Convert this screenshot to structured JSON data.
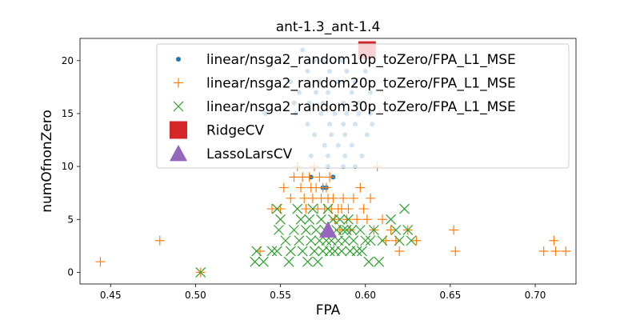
{
  "chart_data": {
    "type": "scatter",
    "title": "ant-1.3_ant-1.4",
    "xlabel": "FPA",
    "ylabel": "numOfnonZero",
    "xlim": [
      0.432,
      0.724
    ],
    "ylim": [
      -1.1,
      22.1
    ],
    "xticks": [
      0.45,
      0.5,
      0.55,
      0.6,
      0.65,
      0.7
    ],
    "xtick_labels": [
      "0.45",
      "0.50",
      "0.55",
      "0.60",
      "0.65",
      "0.70"
    ],
    "yticks": [
      0,
      5,
      10,
      15,
      20
    ],
    "ytick_labels": [
      "0",
      "5",
      "10",
      "15",
      "20"
    ],
    "grid": false,
    "legend_position": "upper-right",
    "series": [
      {
        "name": "linear/nsga2_random10p_toZero/FPA_L1_MSE",
        "marker": "dot",
        "color": "#1f77b4",
        "points": [
          [
            0.563,
            21
          ],
          [
            0.57,
            20
          ],
          [
            0.575,
            20
          ],
          [
            0.586,
            20
          ],
          [
            0.598,
            21
          ],
          [
            0.566,
            19
          ],
          [
            0.579,
            19
          ],
          [
            0.589,
            19
          ],
          [
            0.6,
            19
          ],
          [
            0.556,
            18
          ],
          [
            0.573,
            18
          ],
          [
            0.584,
            18
          ],
          [
            0.594,
            18
          ],
          [
            0.561,
            17
          ],
          [
            0.571,
            17
          ],
          [
            0.578,
            17
          ],
          [
            0.592,
            17
          ],
          [
            0.603,
            17
          ],
          [
            0.558,
            16
          ],
          [
            0.567,
            16
          ],
          [
            0.575,
            16
          ],
          [
            0.587,
            16
          ],
          [
            0.596,
            16
          ],
          [
            0.541,
            15
          ],
          [
            0.559,
            15
          ],
          [
            0.574,
            15
          ],
          [
            0.582,
            15
          ],
          [
            0.589,
            15
          ],
          [
            0.596,
            15
          ],
          [
            0.603,
            15
          ],
          [
            0.566,
            14
          ],
          [
            0.579,
            14
          ],
          [
            0.587,
            14
          ],
          [
            0.594,
            14
          ],
          [
            0.604,
            14
          ],
          [
            0.57,
            13
          ],
          [
            0.58,
            13
          ],
          [
            0.588,
            13
          ],
          [
            0.601,
            13
          ],
          [
            0.576,
            12
          ],
          [
            0.584,
            12
          ],
          [
            0.592,
            12
          ],
          [
            0.568,
            11
          ],
          [
            0.578,
            11
          ],
          [
            0.588,
            11
          ],
          [
            0.598,
            11
          ],
          [
            0.578,
            10
          ],
          [
            0.587,
            10
          ],
          [
            0.594,
            10
          ],
          [
            0.568,
            9
          ],
          [
            0.581,
            9
          ],
          [
            0.575,
            8
          ],
          [
            0.577,
            8
          ]
        ]
      },
      {
        "name": "linear/nsga2_random20p_toZero/FPA_L1_MSE",
        "marker": "plus",
        "color": "#ff7f0e",
        "points": [
          [
            0.444,
            1
          ],
          [
            0.479,
            3
          ],
          [
            0.503,
            0
          ],
          [
            0.538,
            2
          ],
          [
            0.545,
            6
          ],
          [
            0.55,
            6
          ],
          [
            0.552,
            8
          ],
          [
            0.556,
            7
          ],
          [
            0.558,
            9
          ],
          [
            0.56,
            10
          ],
          [
            0.562,
            8
          ],
          [
            0.563,
            9
          ],
          [
            0.564,
            7
          ],
          [
            0.565,
            6
          ],
          [
            0.567,
            9
          ],
          [
            0.568,
            8
          ],
          [
            0.569,
            7
          ],
          [
            0.57,
            10
          ],
          [
            0.571,
            8
          ],
          [
            0.572,
            6
          ],
          [
            0.573,
            9
          ],
          [
            0.574,
            7
          ],
          [
            0.575,
            8
          ],
          [
            0.576,
            6
          ],
          [
            0.577,
            8
          ],
          [
            0.578,
            7
          ],
          [
            0.579,
            9
          ],
          [
            0.58,
            6
          ],
          [
            0.581,
            7
          ],
          [
            0.582,
            5
          ],
          [
            0.584,
            6
          ],
          [
            0.585,
            4
          ],
          [
            0.586,
            6
          ],
          [
            0.587,
            7
          ],
          [
            0.589,
            5
          ],
          [
            0.59,
            6
          ],
          [
            0.591,
            4
          ],
          [
            0.593,
            7
          ],
          [
            0.595,
            5
          ],
          [
            0.597,
            8
          ],
          [
            0.599,
            6
          ],
          [
            0.601,
            5
          ],
          [
            0.603,
            7
          ],
          [
            0.605,
            4
          ],
          [
            0.607,
            10
          ],
          [
            0.61,
            5
          ],
          [
            0.612,
            3
          ],
          [
            0.615,
            4
          ],
          [
            0.618,
            3
          ],
          [
            0.62,
            2
          ],
          [
            0.625,
            4
          ],
          [
            0.63,
            3
          ],
          [
            0.652,
            4
          ],
          [
            0.653,
            2
          ],
          [
            0.705,
            2
          ],
          [
            0.711,
            3
          ],
          [
            0.712,
            2
          ],
          [
            0.718,
            2
          ]
        ]
      },
      {
        "name": "linear/nsga2_random30p_toZero/FPA_L1_MSE",
        "marker": "x",
        "color": "#2ca02c",
        "points": [
          [
            0.503,
            0
          ],
          [
            0.535,
            1
          ],
          [
            0.536,
            2
          ],
          [
            0.54,
            1
          ],
          [
            0.545,
            2
          ],
          [
            0.548,
            2
          ],
          [
            0.548,
            6
          ],
          [
            0.549,
            4
          ],
          [
            0.55,
            5
          ],
          [
            0.553,
            3
          ],
          [
            0.555,
            1
          ],
          [
            0.556,
            2
          ],
          [
            0.558,
            4
          ],
          [
            0.56,
            6
          ],
          [
            0.561,
            3
          ],
          [
            0.562,
            5
          ],
          [
            0.563,
            2
          ],
          [
            0.565,
            4
          ],
          [
            0.566,
            1
          ],
          [
            0.567,
            5
          ],
          [
            0.568,
            3
          ],
          [
            0.569,
            6
          ],
          [
            0.57,
            2
          ],
          [
            0.571,
            4
          ],
          [
            0.572,
            1
          ],
          [
            0.573,
            3
          ],
          [
            0.574,
            5
          ],
          [
            0.575,
            2
          ],
          [
            0.576,
            4
          ],
          [
            0.577,
            3
          ],
          [
            0.578,
            6
          ],
          [
            0.579,
            2
          ],
          [
            0.58,
            3
          ],
          [
            0.581,
            5
          ],
          [
            0.582,
            2
          ],
          [
            0.583,
            4
          ],
          [
            0.584,
            3
          ],
          [
            0.585,
            5
          ],
          [
            0.586,
            2
          ],
          [
            0.587,
            4
          ],
          [
            0.588,
            3
          ],
          [
            0.589,
            4
          ],
          [
            0.59,
            5
          ],
          [
            0.591,
            2
          ],
          [
            0.592,
            4
          ],
          [
            0.593,
            3
          ],
          [
            0.595,
            2
          ],
          [
            0.597,
            4
          ],
          [
            0.598,
            2
          ],
          [
            0.6,
            3
          ],
          [
            0.602,
            1
          ],
          [
            0.603,
            3
          ],
          [
            0.605,
            4
          ],
          [
            0.608,
            1
          ],
          [
            0.61,
            3
          ],
          [
            0.615,
            5
          ],
          [
            0.618,
            4
          ],
          [
            0.62,
            3
          ],
          [
            0.623,
            6
          ],
          [
            0.625,
            4
          ],
          [
            0.627,
            3
          ]
        ]
      },
      {
        "name": "RidgeCV",
        "marker": "square",
        "color": "#d62728",
        "points": [
          [
            0.601,
            21
          ]
        ]
      },
      {
        "name": "LassoLarsCV",
        "marker": "triangle",
        "color": "#9467bd",
        "points": [
          [
            0.578,
            4
          ]
        ]
      }
    ]
  }
}
